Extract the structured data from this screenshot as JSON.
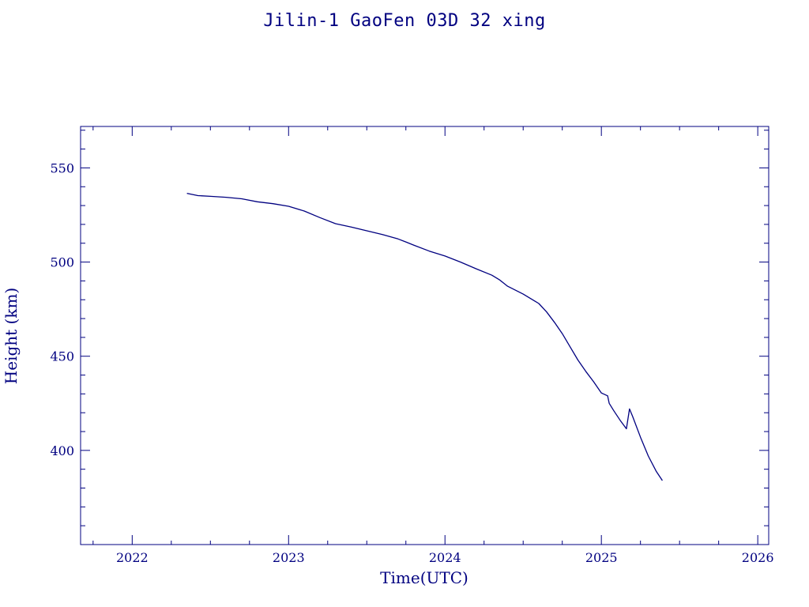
{
  "chart_data": {
    "type": "line",
    "title": "Jilin-1 GaoFen 03D 32 xing",
    "xlabel": "Time(UTC)",
    "ylabel": "Height (km)",
    "xlim": [
      2021.67,
      2026.07
    ],
    "ylim": [
      350,
      572
    ],
    "x_ticks": [
      "2022",
      "2023",
      "2024",
      "2025",
      "2026"
    ],
    "y_ticks": [
      "400",
      "450",
      "500",
      "550"
    ],
    "grid": false,
    "line_color": "#000080",
    "series": [
      {
        "x": [
          2022.35,
          2022.42,
          2022.5,
          2022.6,
          2022.7,
          2022.8,
          2022.9,
          2023.0,
          2023.1,
          2023.2,
          2023.3,
          2023.4,
          2023.5,
          2023.6,
          2023.7,
          2023.75,
          2023.8,
          2023.9,
          2024.0,
          2024.1,
          2024.2,
          2024.3,
          2024.35,
          2024.4,
          2024.5,
          2024.6,
          2024.65,
          2024.7,
          2024.75,
          2024.8,
          2024.85,
          2024.9,
          2024.95,
          2025.0,
          2025.04,
          2025.05,
          2025.08,
          2025.12,
          2025.16,
          2025.18,
          2025.2,
          2025.25,
          2025.3,
          2025.35,
          2025.39
        ],
        "y": [
          536.5,
          535.3,
          534.9,
          534.4,
          533.6,
          532.0,
          531.0,
          529.6,
          527.1,
          523.6,
          520.4,
          518.6,
          516.6,
          514.6,
          512.3,
          510.7,
          509.0,
          505.8,
          503.2,
          500.0,
          496.4,
          493.0,
          490.5,
          487.2,
          483.0,
          478.0,
          473.5,
          468.0,
          462.0,
          455.0,
          448.0,
          442.0,
          436.5,
          430.5,
          429.0,
          425.0,
          421.0,
          416.0,
          411.5,
          422.0,
          418.0,
          407.0,
          397.0,
          389.0,
          384.0
        ]
      }
    ]
  }
}
